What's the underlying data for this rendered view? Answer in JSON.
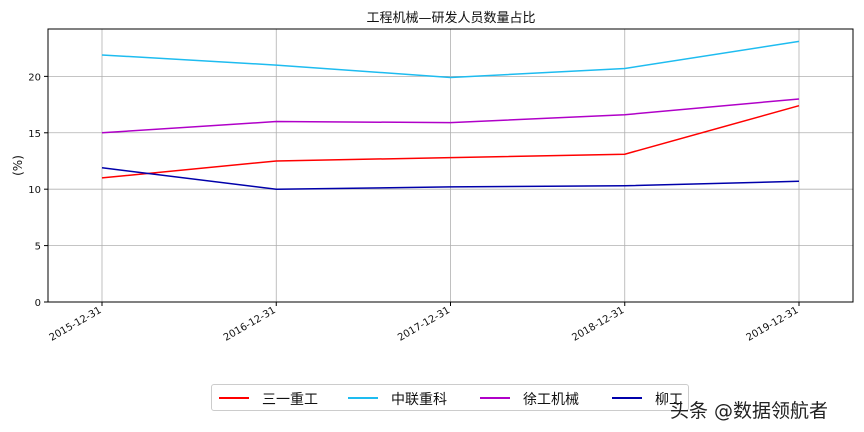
{
  "chart_data": {
    "type": "line",
    "title": "工程机械—研发人员数量占比",
    "xlabel": "",
    "ylabel": "(%)",
    "categories": [
      "2015-12-31",
      "2016-12-31",
      "2017-12-31",
      "2018-12-31",
      "2019-12-31"
    ],
    "ylim": [
      0,
      24.2
    ],
    "yticks": [
      0,
      5,
      10,
      15,
      20
    ],
    "grid": true,
    "legend_position": "bottom-center",
    "series": [
      {
        "name": "三一重工",
        "color": "#ff0000",
        "values": [
          11.0,
          12.5,
          12.8,
          13.1,
          17.4
        ]
      },
      {
        "name": "中联重科",
        "color": "#1ebcf0",
        "values": [
          21.9,
          21.0,
          19.9,
          20.7,
          23.1
        ]
      },
      {
        "name": "徐工机械",
        "color": "#b000c8",
        "values": [
          15.0,
          16.0,
          15.9,
          16.6,
          18.0
        ]
      },
      {
        "name": "柳工",
        "color": "#0000aa",
        "values": [
          11.9,
          10.0,
          10.2,
          10.3,
          10.7
        ]
      }
    ]
  },
  "watermark": "头条 @数据领航者"
}
